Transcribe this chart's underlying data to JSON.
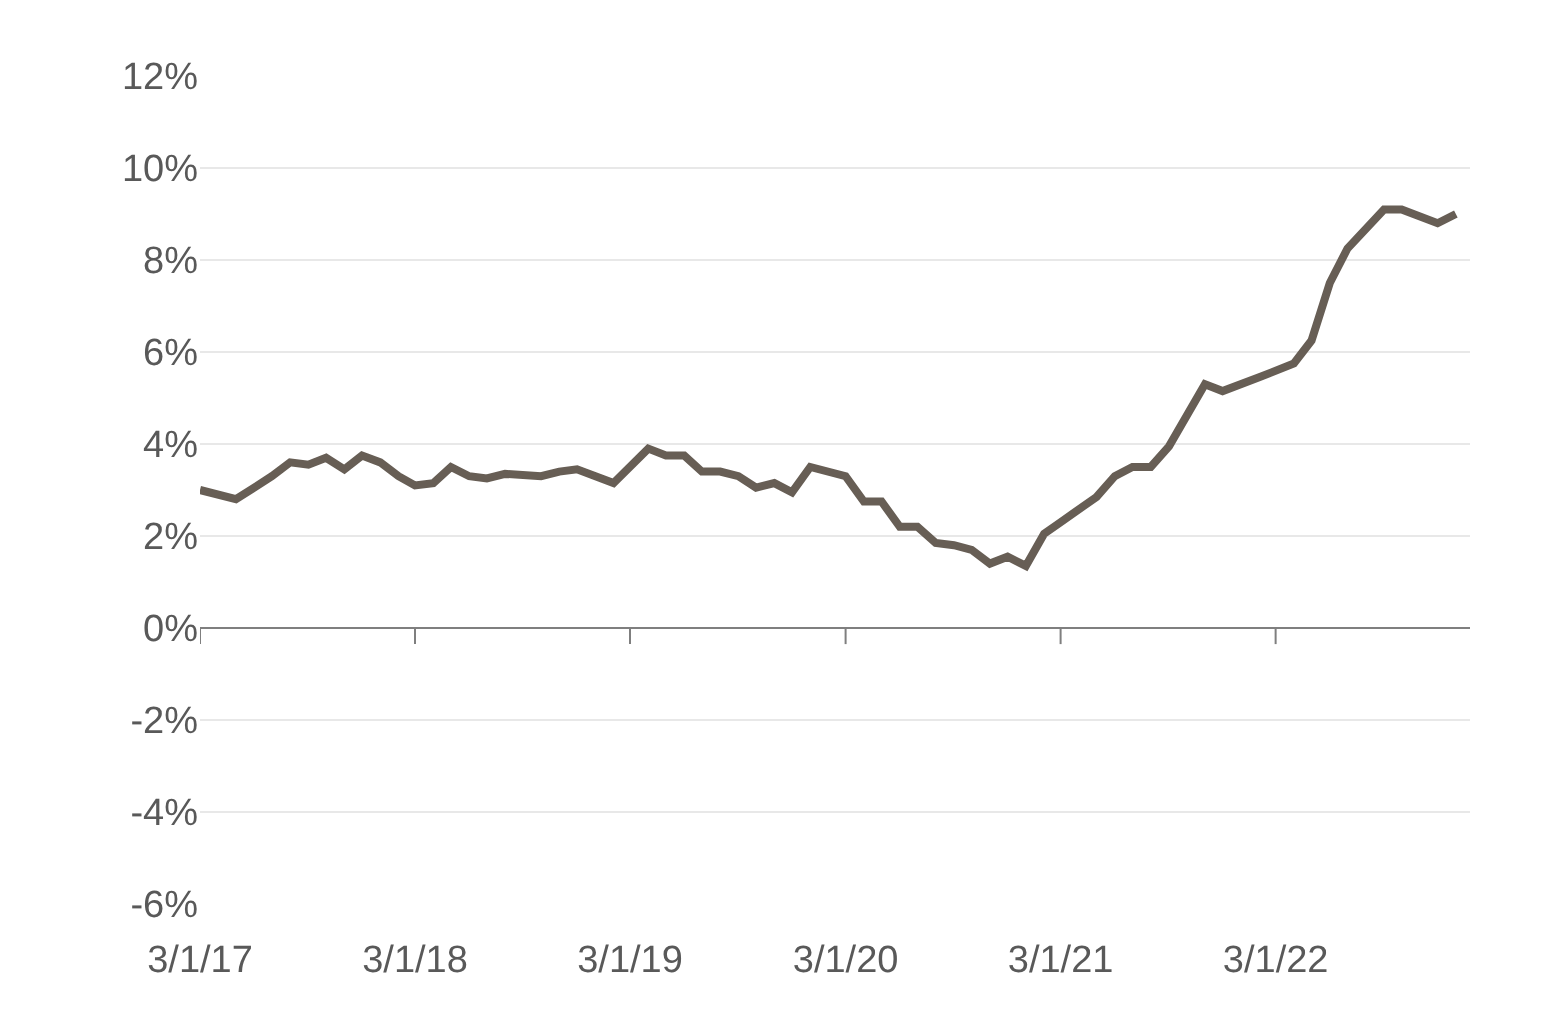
{
  "chart_data": {
    "type": "line",
    "grid": "y",
    "x": [
      "2017-03",
      "2017-05",
      "2017-06",
      "2017-07",
      "2017-08",
      "2017-09",
      "2017-10",
      "2017-11",
      "2017-12",
      "2018-01",
      "2018-02",
      "2018-03",
      "2018-04",
      "2018-05",
      "2018-06",
      "2018-07",
      "2018-08",
      "2018-10",
      "2018-11",
      "2018-12",
      "2019-02",
      "2019-04",
      "2019-05",
      "2019-06",
      "2019-07",
      "2019-08",
      "2019-09",
      "2019-10",
      "2019-11",
      "2019-12",
      "2020-01",
      "2020-03",
      "2020-04",
      "2020-05",
      "2020-06",
      "2020-07",
      "2020-08",
      "2020-09",
      "2020-10",
      "2020-11",
      "2020-12",
      "2021-01",
      "2021-02",
      "2021-03",
      "2021-05",
      "2021-06",
      "2021-07",
      "2021-08",
      "2021-09",
      "2021-11",
      "2021-12",
      "2022-02",
      "2022-04",
      "2022-05",
      "2022-06",
      "2022-07",
      "2022-09",
      "2022-10",
      "2022-12",
      "2023-01"
    ],
    "series": [
      {
        "color": "#675e55",
        "values": [
          3.0,
          2.8,
          3.05,
          3.3,
          3.6,
          3.55,
          3.7,
          3.45,
          3.75,
          3.6,
          3.3,
          3.1,
          3.15,
          3.5,
          3.3,
          3.25,
          3.35,
          3.3,
          3.4,
          3.45,
          3.15,
          3.9,
          3.75,
          3.75,
          3.4,
          3.4,
          3.3,
          3.05,
          3.15,
          2.95,
          3.5,
          3.3,
          2.75,
          2.75,
          2.2,
          2.2,
          1.85,
          1.8,
          1.7,
          1.4,
          1.55,
          1.35,
          2.05,
          2.3,
          2.85,
          3.3,
          3.5,
          3.5,
          3.95,
          5.3,
          5.15,
          5.45,
          5.75,
          6.25,
          7.5,
          8.25,
          9.1,
          9.1,
          8.8,
          9.0
        ]
      }
    ],
    "xlim": [
      "2017-03-01",
      "2023-01-25"
    ],
    "xticks": [
      {
        "value": "2017-03-01",
        "label": "3/1/17"
      },
      {
        "value": "2018-03-01",
        "label": "3/1/18"
      },
      {
        "value": "2019-03-01",
        "label": "3/1/19"
      },
      {
        "value": "2020-03-01",
        "label": "3/1/20"
      },
      {
        "value": "2021-03-01",
        "label": "3/1/21"
      },
      {
        "value": "2022-03-01",
        "label": "3/1/22"
      }
    ],
    "ylim": [
      -6,
      12
    ],
    "yticks": [
      {
        "value": -6,
        "label": "-6%"
      },
      {
        "value": -4,
        "label": "-4%"
      },
      {
        "value": -2,
        "label": "-2%"
      },
      {
        "value": 0,
        "label": "0%"
      },
      {
        "value": 2,
        "label": "2%"
      },
      {
        "value": 4,
        "label": "4%"
      },
      {
        "value": 6,
        "label": "6%"
      },
      {
        "value": 8,
        "label": "8%"
      },
      {
        "value": 10,
        "label": "10%"
      },
      {
        "value": 12,
        "label": "12%"
      }
    ]
  }
}
